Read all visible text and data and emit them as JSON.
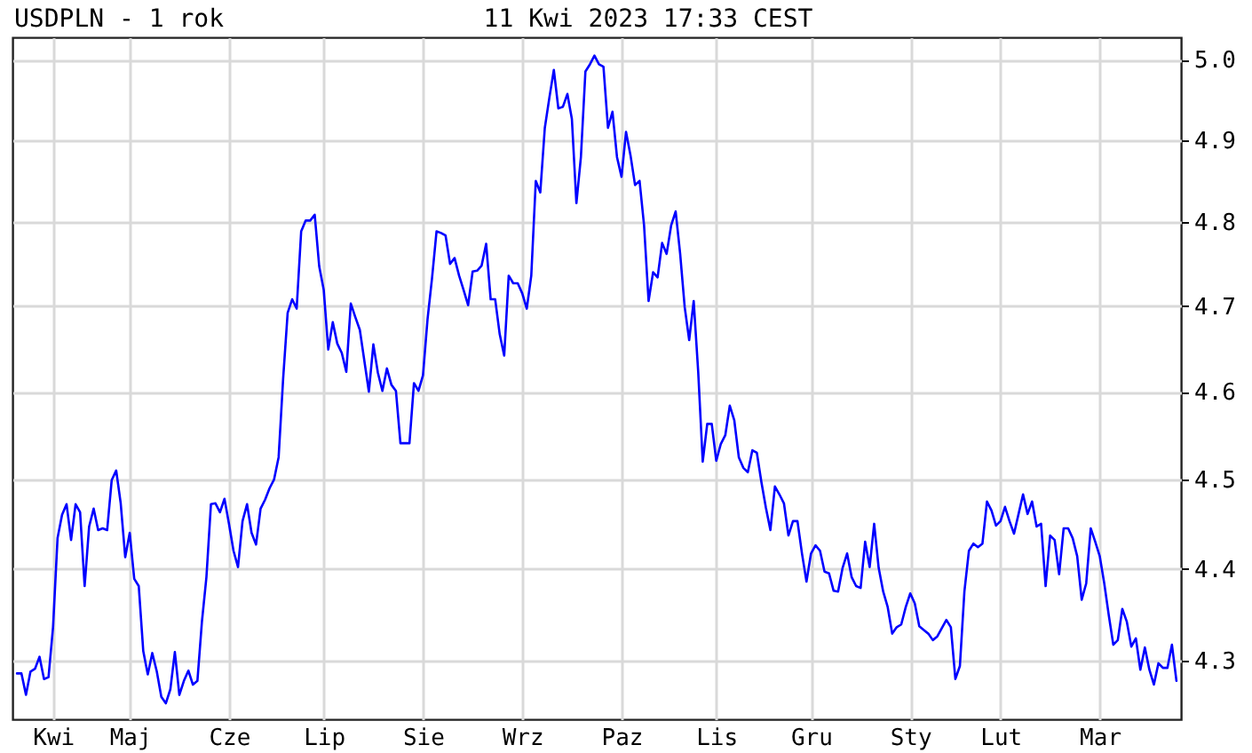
{
  "chart_data": {
    "type": "line",
    "title": "USDPLN - 1 rok",
    "subtitle": "11 Kwi 2023 17:33 CEST",
    "categories": [
      null,
      null,
      null,
      null,
      null,
      null,
      null,
      null,
      "Kwi",
      null,
      null,
      null,
      null,
      null,
      null,
      null,
      null,
      null,
      null,
      null,
      null,
      null,
      null,
      null,
      null,
      "Maj",
      null,
      null,
      null,
      null,
      null,
      null,
      null,
      null,
      null,
      null,
      null,
      null,
      null,
      null,
      null,
      null,
      null,
      null,
      null,
      null,
      null,
      "Cze",
      null,
      null,
      null,
      null,
      null,
      null,
      null,
      null,
      null,
      null,
      null,
      null,
      null,
      null,
      null,
      null,
      null,
      null,
      null,
      null,
      "Lip",
      null,
      null,
      null,
      null,
      null,
      null,
      null,
      null,
      null,
      null,
      null,
      null,
      null,
      null,
      null,
      null,
      null,
      null,
      null,
      null,
      null,
      "Sie",
      null,
      null,
      null,
      null,
      null,
      null,
      null,
      null,
      null,
      null,
      null,
      null,
      null,
      null,
      null,
      null,
      null,
      null,
      null,
      null,
      null,
      "Wrz",
      null,
      null,
      null,
      null,
      null,
      null,
      null,
      null,
      null,
      null,
      null,
      null,
      null,
      null,
      null,
      null,
      null,
      null,
      null,
      null,
      null,
      "Paz",
      null,
      null,
      null,
      null,
      null,
      null,
      null,
      null,
      null,
      null,
      null,
      null,
      null,
      null,
      null,
      null,
      null,
      null,
      null,
      null,
      "Lis",
      null,
      null,
      null,
      null,
      null,
      null,
      null,
      null,
      null,
      null,
      null,
      null,
      null,
      null,
      null,
      null,
      null,
      null,
      null,
      null,
      "Gru",
      null,
      null,
      null,
      null,
      null,
      null,
      null,
      null,
      null,
      null,
      null,
      null,
      null,
      null,
      null,
      null,
      null,
      null,
      null,
      null,
      null,
      "Sty",
      null,
      null,
      null,
      null,
      null,
      null,
      null,
      null,
      null,
      null,
      null,
      null,
      null,
      null,
      null,
      null,
      null,
      null,
      null,
      "Lut",
      null,
      null,
      null,
      null,
      null,
      null,
      null,
      null,
      null,
      null,
      null,
      null,
      null,
      null,
      null,
      null,
      null,
      null,
      null,
      null,
      null,
      "Mar",
      null,
      null,
      null,
      null,
      null,
      null,
      null,
      null,
      null,
      null,
      null,
      null,
      null,
      null,
      null,
      null,
      null
    ],
    "series": [
      {
        "color": "#0000ff",
        "values": [
          4.286,
          4.286,
          4.263,
          4.288,
          4.291,
          4.304,
          4.28,
          4.282,
          4.336,
          4.434,
          4.46,
          4.472,
          4.432,
          4.472,
          4.463,
          4.381,
          4.447,
          4.467,
          4.443,
          4.445,
          4.443,
          4.499,
          4.51,
          4.473,
          4.413,
          4.44,
          4.389,
          4.381,
          4.31,
          4.285,
          4.308,
          4.288,
          4.261,
          4.254,
          4.269,
          4.309,
          4.263,
          4.278,
          4.289,
          4.274,
          4.278,
          4.342,
          4.391,
          4.472,
          4.473,
          4.463,
          4.478,
          4.45,
          4.42,
          4.402,
          4.453,
          4.472,
          4.44,
          4.427,
          4.467,
          4.477,
          4.49,
          4.5,
          4.525,
          4.615,
          4.692,
          4.708,
          4.697,
          4.789,
          4.802,
          4.802,
          4.809,
          4.747,
          4.719,
          4.649,
          4.681,
          4.656,
          4.645,
          4.623,
          4.703,
          4.687,
          4.672,
          4.636,
          4.6,
          4.655,
          4.622,
          4.601,
          4.627,
          4.608,
          4.601,
          4.541,
          4.541,
          4.541,
          4.61,
          4.601,
          4.619,
          4.684,
          4.733,
          4.789,
          4.787,
          4.784,
          4.75,
          4.757,
          4.736,
          4.719,
          4.701,
          4.741,
          4.742,
          4.748,
          4.774,
          4.708,
          4.708,
          4.667,
          4.642,
          4.736,
          4.727,
          4.727,
          4.715,
          4.697,
          4.736,
          4.85,
          4.836,
          4.915,
          4.952,
          4.987,
          4.939,
          4.941,
          4.957,
          4.926,
          4.823,
          4.879,
          4.985,
          4.994,
          5.005,
          4.994,
          4.991,
          4.915,
          4.935,
          4.879,
          4.855,
          4.91,
          4.881,
          4.845,
          4.85,
          4.796,
          4.706,
          4.74,
          4.734,
          4.775,
          4.762,
          4.796,
          4.813,
          4.762,
          4.699,
          4.66,
          4.706,
          4.623,
          4.52,
          4.563,
          4.563,
          4.521,
          4.54,
          4.55,
          4.584,
          4.567,
          4.525,
          4.513,
          4.508,
          4.533,
          4.53,
          4.497,
          4.468,
          4.443,
          4.492,
          4.483,
          4.473,
          4.437,
          4.453,
          4.453,
          4.417,
          4.386,
          4.417,
          4.426,
          4.42,
          4.397,
          4.395,
          4.376,
          4.375,
          4.401,
          4.417,
          4.391,
          4.381,
          4.379,
          4.43,
          4.402,
          4.45,
          4.401,
          4.375,
          4.358,
          4.329,
          4.336,
          4.339,
          4.358,
          4.373,
          4.362,
          4.337,
          4.333,
          4.329,
          4.322,
          4.326,
          4.335,
          4.344,
          4.336,
          4.28,
          4.294,
          4.375,
          4.42,
          4.428,
          4.424,
          4.428,
          4.475,
          4.465,
          4.448,
          4.453,
          4.469,
          4.453,
          4.439,
          4.461,
          4.483,
          4.461,
          4.475,
          4.447,
          4.45,
          4.381,
          4.437,
          4.432,
          4.394,
          4.445,
          4.445,
          4.434,
          4.414,
          4.366,
          4.384,
          4.445,
          4.43,
          4.414,
          4.384,
          4.349,
          4.317,
          4.322,
          4.356,
          4.342,
          4.315,
          4.324,
          4.29,
          4.314,
          4.29,
          4.274,
          4.297,
          4.292,
          4.292,
          4.317,
          4.278
        ]
      }
    ],
    "ylim": [
      4.237,
      5.028
    ],
    "yticks": [
      4.3,
      4.4,
      4.5,
      4.6,
      4.7,
      4.8,
      4.9,
      {
        "value": 5,
        "label": "5.0"
      }
    ],
    "log": true,
    "grid": true
  }
}
